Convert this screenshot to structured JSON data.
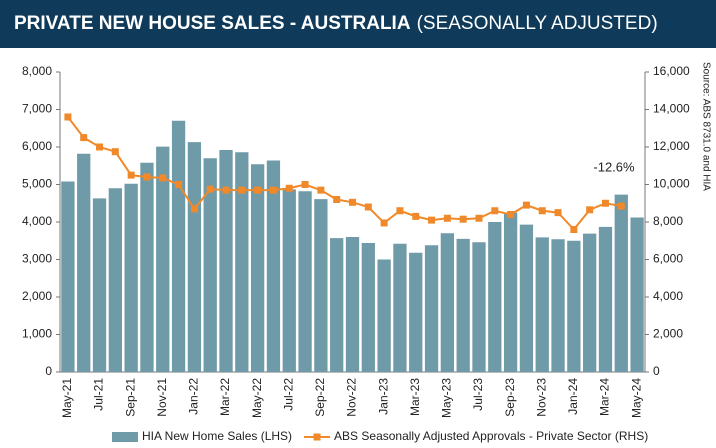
{
  "chart_data": {
    "type": "bar",
    "title": "PRIVATE NEW HOUSE SALES -  AUSTRALIA",
    "subtitle": "(SEASONALLY ADJUSTED)",
    "categories": [
      "May-21",
      null,
      "Jul-21",
      null,
      "Sep-21",
      null,
      "Nov-21",
      null,
      "Jan-22",
      null,
      "Mar-22",
      null,
      "May-22",
      null,
      "Jul-22",
      null,
      "Sep-22",
      null,
      "Nov-22",
      null,
      "Jan-23",
      null,
      "Mar-23",
      null,
      "May-23",
      null,
      "Jul-23",
      null,
      "Sep-23",
      null,
      "Nov-23",
      null,
      "Jan-24",
      null,
      "Mar-24",
      null,
      "May-24"
    ],
    "series": [
      {
        "name": "HIA New Home Sales (LHS)",
        "type": "bar",
        "color": "#6f9aa8",
        "values": [
          5080,
          5820,
          4630,
          4900,
          5020,
          5580,
          6010,
          6700,
          6130,
          5700,
          5920,
          5860,
          5540,
          5640,
          4870,
          4820,
          4610,
          3570,
          3600,
          3440,
          3000,
          3420,
          3180,
          3380,
          3700,
          3550,
          3460,
          4000,
          4250,
          3930,
          3590,
          3540,
          3500,
          3690,
          3870,
          4730,
          4120
        ]
      },
      {
        "name": "ABS Seasonally Adjusted Approvals - Private Sector (RHS)",
        "type": "line",
        "axis": "y2",
        "color": "#f0892a",
        "values": [
          13600,
          12500,
          12000,
          11750,
          10500,
          10400,
          10350,
          10000,
          8700,
          9750,
          9700,
          9700,
          9700,
          9700,
          9800,
          10000,
          9700,
          9200,
          9050,
          8800,
          7950,
          8600,
          8300,
          8100,
          8200,
          8150,
          8200,
          8600,
          8400,
          8900,
          8600,
          8500,
          7600,
          8650,
          9000,
          8850,
          null
        ]
      }
    ],
    "ylim": [
      0,
      8000
    ],
    "yticks": [
      0,
      {
        "value": 1000,
        "label": "1,000"
      },
      {
        "value": 2000,
        "label": "2,000"
      },
      {
        "value": 3000,
        "label": "3,000"
      },
      {
        "value": 4000,
        "label": "4,000"
      },
      {
        "value": 5000,
        "label": "5,000"
      },
      {
        "value": 6000,
        "label": "6,000"
      },
      {
        "value": 7000,
        "label": "7,000"
      },
      {
        "value": 8000,
        "label": "8,000"
      }
    ],
    "y2lim": [
      0,
      16000
    ],
    "y2ticks": [
      0,
      {
        "value": 2000,
        "label": "2,000"
      },
      {
        "value": 4000,
        "label": "4,000"
      },
      {
        "value": 6000,
        "label": "6,000"
      },
      {
        "value": 8000,
        "label": "8,000"
      },
      {
        "value": 10000,
        "label": "10,000"
      },
      {
        "value": 12000,
        "label": "12,000"
      },
      {
        "value": 14000,
        "label": "14,000"
      },
      {
        "value": 16000,
        "label": "16,000"
      }
    ],
    "annotation": "-12.6%",
    "source": "Source: ABS 8731.0 and HIA",
    "legend": "bottom"
  }
}
